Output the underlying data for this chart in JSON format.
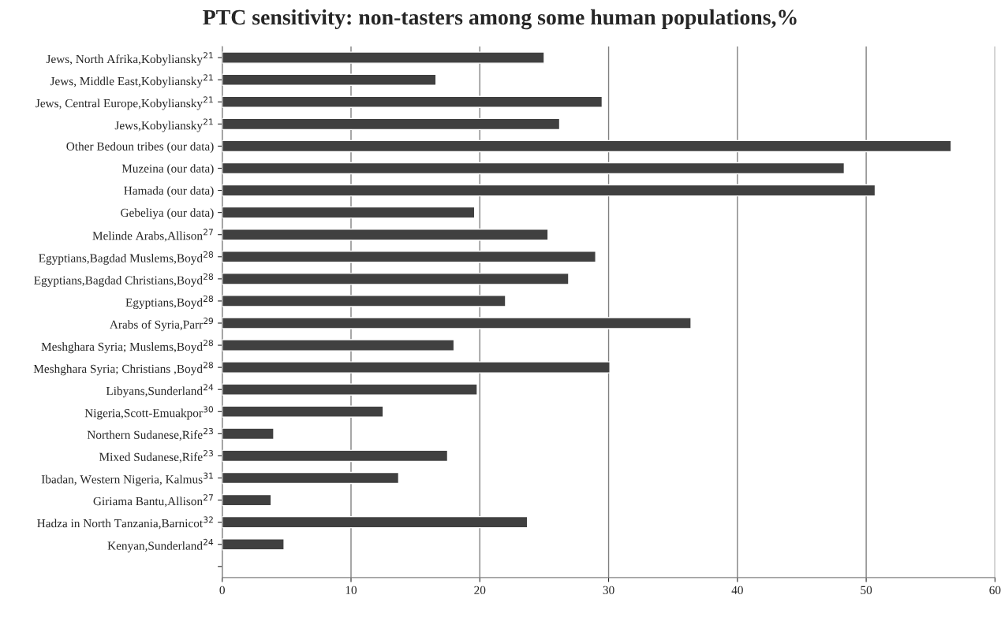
{
  "chart_data": {
    "type": "bar",
    "orientation": "horizontal",
    "title": "PTC sensitivity: non-tasters among some human populations,%",
    "categories": [
      "Jews, North Afrika,Kobyliansky$^{21}$",
      "Jews, Middle East,Kobyliansky$^{21}$",
      "Jews, Central Europe,Kobyliansky$^{21}$",
      "Jews,Kobyliansky$^{21}$",
      "Other Bedoun tribes (our data)",
      "Muzeina (our data)",
      "Hamada (our data)",
      "Gebeliya (our data)",
      "Melinde Arabs,Allison$^{27}$",
      "Egyptians,Bagdad Muslems,Boyd$^{28}$",
      "Egyptians,Bagdad Christians,Boyd$^{28}$",
      "Egyptians,Boyd$^{28}$",
      "Arabs of Syria,Parr$^{29}$",
      "Meshghara Syria; Muslems,Boyd$^{28}$",
      "Meshghara Syria; Christians ,Boyd$^{28}$",
      "Libyans,Sunderland$^{24}$",
      "Nigeria,Scott-Emuakpor$^{30}$",
      "Northern Sudanese,Rife$^{23}$",
      "Mixed Sudanese,Rife$^{23}$",
      "Ibadan, Western Nigeria, Kalmus$^{31}$",
      "Giriama Bantu,Allison$^{27}$",
      "Hadza in North Tanzania,Barnicot$^{32}$",
      "Kenyan,Sunderland$^{24}$",
      null
    ],
    "values": [
      25.0,
      16.6,
      29.5,
      26.2,
      56.6,
      48.3,
      50.7,
      19.6,
      25.3,
      29.0,
      26.9,
      22.0,
      36.4,
      18.0,
      30.1,
      19.8,
      12.5,
      4.0,
      17.5,
      13.7,
      3.8,
      23.7,
      4.8,
      null
    ],
    "color": "#404040",
    "xlim": [
      0,
      60
    ],
    "xticks": [
      0,
      10,
      20,
      30,
      40,
      50,
      60
    ],
    "grid": "x"
  }
}
